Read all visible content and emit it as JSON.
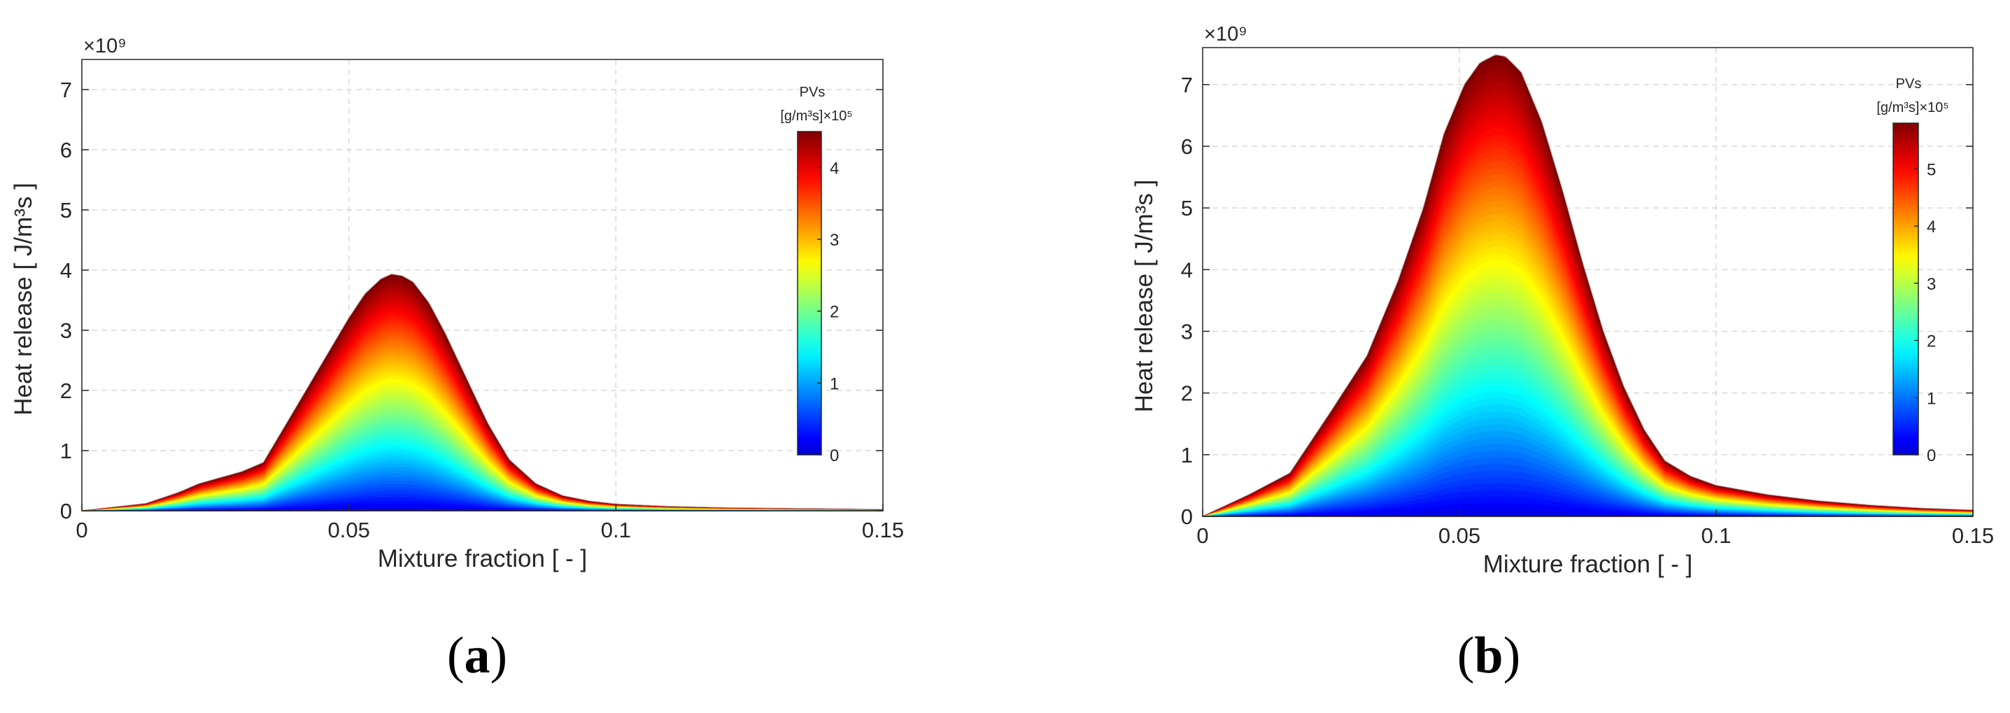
{
  "chart_data": [
    {
      "panel": "a",
      "caption": "a",
      "type": "area",
      "title": "",
      "xlabel": "Mixture fraction [ - ]",
      "ylabel": "Heat release [ J/m³s ]",
      "y_exponent": "×10⁹",
      "xlim": [
        0,
        0.15
      ],
      "ylim": [
        0,
        7.5
      ],
      "xticks": [
        0,
        0.05,
        0.1,
        0.15
      ],
      "xtick_labels": [
        "0",
        "0.05",
        "0.1",
        "0.15"
      ],
      "yticks": [
        0,
        1,
        2,
        3,
        4,
        5,
        6,
        7
      ],
      "ytick_labels": [
        "0",
        "1",
        "2",
        "3",
        "4",
        "5",
        "6",
        "7"
      ],
      "grid": true,
      "colormap": "jet",
      "colorbar": {
        "title_line1": "PVs",
        "title_line2": "[g/m³s]×10⁵",
        "range": [
          0,
          4.5
        ],
        "ticks": [
          0,
          1,
          2,
          3,
          4
        ],
        "tick_labels": [
          "0",
          "1",
          "2",
          "3",
          "4"
        ],
        "placement": "right, inside axes"
      },
      "envelope": {
        "x": [
          0,
          0.005,
          0.012,
          0.018,
          0.022,
          0.026,
          0.03,
          0.034,
          0.038,
          0.042,
          0.046,
          0.05,
          0.053,
          0.056,
          0.058,
          0.06,
          0.062,
          0.065,
          0.068,
          0.072,
          0.076,
          0.08,
          0.085,
          0.09,
          0.095,
          0.1,
          0.11,
          0.12,
          0.13,
          0.14,
          0.15
        ],
        "y": [
          0,
          0.05,
          0.12,
          0.3,
          0.45,
          0.55,
          0.65,
          0.8,
          1.4,
          2.0,
          2.6,
          3.2,
          3.6,
          3.85,
          3.93,
          3.9,
          3.8,
          3.45,
          2.95,
          2.2,
          1.45,
          0.85,
          0.45,
          0.25,
          0.16,
          0.11,
          0.07,
          0.05,
          0.04,
          0.03,
          0.02
        ]
      }
    },
    {
      "panel": "b",
      "caption": "b",
      "type": "area",
      "title": "",
      "xlabel": "Mixture fraction [ - ]",
      "ylabel": "Heat release [ J/m³s ]",
      "y_exponent": "×10⁹",
      "xlim": [
        0,
        0.15
      ],
      "ylim": [
        0,
        7.6
      ],
      "xticks": [
        0,
        0.05,
        0.1,
        0.15
      ],
      "xtick_labels": [
        "0",
        "0.05",
        "0.1",
        "0.15"
      ],
      "yticks": [
        0,
        1,
        2,
        3,
        4,
        5,
        6,
        7
      ],
      "ytick_labels": [
        "0",
        "1",
        "2",
        "3",
        "4",
        "5",
        "6",
        "7"
      ],
      "grid": true,
      "colormap": "jet",
      "colorbar": {
        "title_line1": "PVs",
        "title_line2": "[g/m³s]×10⁵",
        "range": [
          0,
          5.8
        ],
        "ticks": [
          0,
          1,
          2,
          3,
          4,
          5
        ],
        "tick_labels": [
          "0",
          "1",
          "2",
          "3",
          "4",
          "5"
        ],
        "placement": "right, inside axes"
      },
      "envelope": {
        "x": [
          0,
          0.009,
          0.017,
          0.025,
          0.032,
          0.038,
          0.043,
          0.047,
          0.051,
          0.054,
          0.057,
          0.059,
          0.062,
          0.066,
          0.07,
          0.074,
          0.078,
          0.082,
          0.086,
          0.09,
          0.095,
          0.1,
          0.11,
          0.12,
          0.13,
          0.14,
          0.15
        ],
        "y": [
          0,
          0.35,
          0.7,
          1.7,
          2.6,
          3.8,
          5.0,
          6.2,
          7.0,
          7.35,
          7.48,
          7.45,
          7.2,
          6.4,
          5.3,
          4.1,
          3.0,
          2.1,
          1.4,
          0.9,
          0.65,
          0.5,
          0.35,
          0.25,
          0.18,
          0.13,
          0.1
        ]
      }
    }
  ]
}
